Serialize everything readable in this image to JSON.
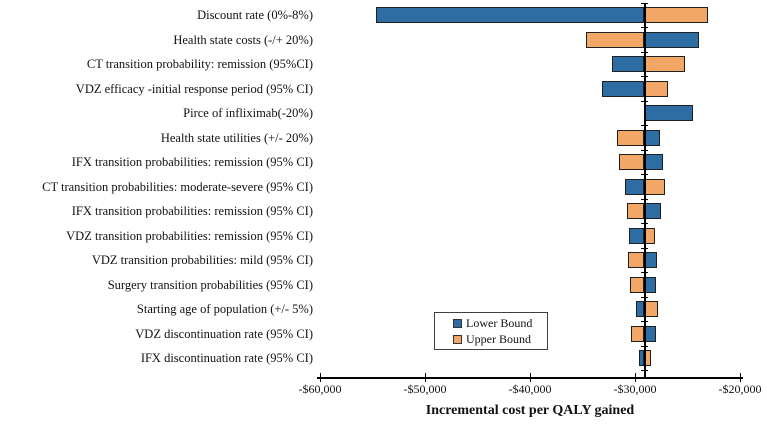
{
  "chart_data": {
    "type": "bar",
    "variant": "tornado",
    "title": "",
    "xlabel": "Incremental cost per QALY gained",
    "categories": [
      "Discount rate (0%-8%)",
      "Health state costs (-/+ 20%)",
      "CT transition probability: remission (95%CI)",
      "VDZ efficacy -initial response period (95% CI)",
      "Pirce of infliximab(-20%)",
      "Health state utilities (+/- 20%)",
      "IFX transition probabilities: remission (95% CI)",
      "CT transition probabilities: moderate-severe (95% CI)",
      "IFX transition probabilities: remission (95% CI)",
      "VDZ transition probabilities: remission (95% CI)",
      "VDZ transition probabilities: mild (95% CI)",
      "Surgery transition probabilities (95% CI)",
      "Starting age of population (+/- 5%)",
      "VDZ discontinuation rate (95% CI)",
      "IFX discontinuation rate (95% CI)"
    ],
    "series": [
      {
        "name": "Lower Bound",
        "color": "#2E6DA4",
        "values": [
          -54700,
          -23900,
          -32200,
          -33100,
          -24500,
          -27600,
          -27300,
          -31000,
          -27500,
          -30600,
          -27900,
          -28000,
          -29900,
          -28000,
          -29600
        ]
      },
      {
        "name": "Upper Bound",
        "color": "#F2A766",
        "values": [
          -23000,
          -34700,
          -25200,
          -26900,
          null,
          -31700,
          -31500,
          -27100,
          -30800,
          -28100,
          -30700,
          -30500,
          -27800,
          -30400,
          -28500
        ]
      }
    ],
    "baseline": -29100,
    "x_ticks": [
      {
        "label": "-$60,000",
        "value": -60000
      },
      {
        "label": "-$50,000",
        "value": -50000
      },
      {
        "label": "-$40,000",
        "value": -40000
      },
      {
        "label": "-$30,000",
        "value": -30000
      },
      {
        "label": "-$20,000",
        "value": -20000
      }
    ],
    "xlim": [
      -60000,
      -20000
    ],
    "grid": false,
    "legend_position": "center-bottom"
  },
  "colors": {
    "lower_bound": "#2E6DA4",
    "upper_bound": "#F2A766",
    "bar_border": "#1f1f1f",
    "axis": "#000000",
    "background": "#ffffff"
  }
}
